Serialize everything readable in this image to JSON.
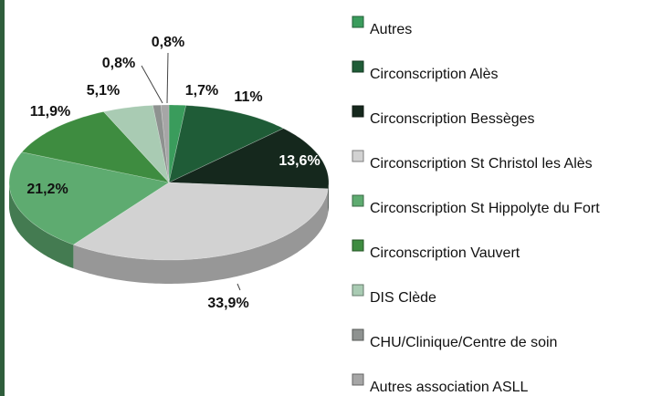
{
  "chart_data": {
    "type": "pie",
    "categories": [
      "Autres",
      "Circonscription Alès",
      "Circonscription Bessèges",
      "Circonscription St Christol les Alès",
      "Circonscription St Hippolyte du Fort",
      "Circonscription Vauvert",
      "DIS Clède",
      "CHU/Clinique/Centre de soin",
      "Autres association ASLL"
    ],
    "values": [
      1.7,
      11,
      13.6,
      33.9,
      21.2,
      11.9,
      5.1,
      0.8,
      0.8
    ],
    "value_labels": [
      "1,7%",
      "11%",
      "13,6%",
      "33,9%",
      "21,2%",
      "11,9%",
      "5,1%",
      "0,8%",
      "0,8%"
    ],
    "colors": [
      "#3a9c5c",
      "#1f5c37",
      "#15281d",
      "#d2d2d2",
      "#5eab70",
      "#3e8c40",
      "#a9cbb3",
      "#8e9290",
      "#a6a6a6"
    ],
    "legend": "right"
  }
}
